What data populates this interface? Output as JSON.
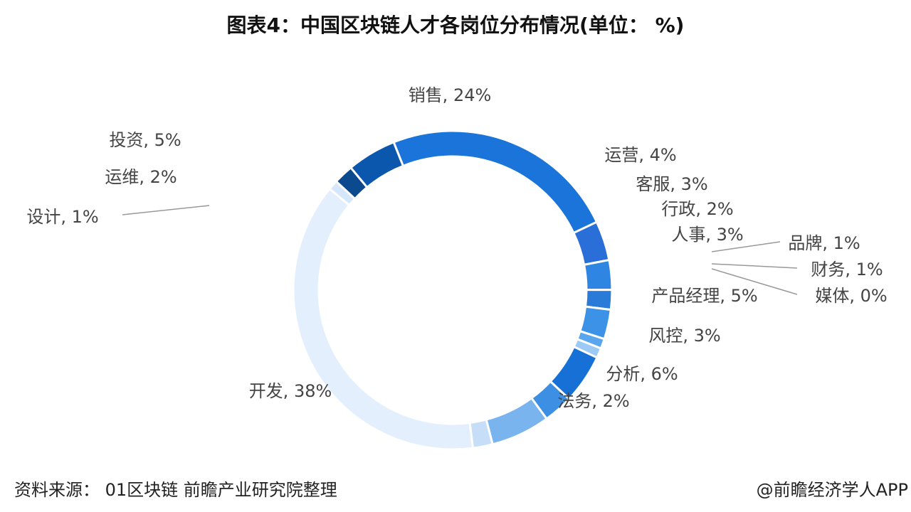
{
  "title": "图表4：中国区块链人才各岗位分布情况(单位： %)",
  "source": "资料来源： 01区块链 前瞻产业研究院整理",
  "credit": "@前瞻经济学人APP",
  "chart_data": {
    "type": "pie",
    "subtype": "donut",
    "unit": "%",
    "slices": [
      {
        "label": "销售",
        "value": 24,
        "text": "销售, 24%",
        "color": "#1a74d9"
      },
      {
        "label": "运营",
        "value": 4,
        "text": "运营, 4%",
        "color": "#2a6fd8"
      },
      {
        "label": "客服",
        "value": 3,
        "text": "客服, 3%",
        "color": "#2f86e2"
      },
      {
        "label": "行政",
        "value": 2,
        "text": "行政, 2%",
        "color": "#2a7ad8"
      },
      {
        "label": "人事",
        "value": 3,
        "text": "人事, 3%",
        "color": "#3b92e6"
      },
      {
        "label": "品牌",
        "value": 1,
        "text": "品牌, 1%",
        "color": "#5aa6ee"
      },
      {
        "label": "财务",
        "value": 1,
        "text": "财务, 1%",
        "color": "#9ccaf5"
      },
      {
        "label": "媒体",
        "value": 0,
        "text": "媒体, 0%",
        "color": "#7ab8f2"
      },
      {
        "label": "产品经理",
        "value": 5,
        "text": "产品经理, 5%",
        "color": "#1670d6"
      },
      {
        "label": "风控",
        "value": 3,
        "text": "风控, 3%",
        "color": "#3d8fe3"
      },
      {
        "label": "分析",
        "value": 6,
        "text": "分析, 6%",
        "color": "#7ab4ef"
      },
      {
        "label": "法务",
        "value": 2,
        "text": "法务, 2%",
        "color": "#c6def7"
      },
      {
        "label": "开发",
        "value": 38,
        "text": "开发, 38%",
        "color": "#e3effc"
      },
      {
        "label": "设计",
        "value": 1,
        "text": "设计, 1%",
        "color": "#d5e7fa"
      },
      {
        "label": "运维",
        "value": 2,
        "text": "运维, 2%",
        "color": "#0b4a8f"
      },
      {
        "label": "投资",
        "value": 5,
        "text": "投资, 5%",
        "color": "#0a57ad"
      }
    ]
  }
}
